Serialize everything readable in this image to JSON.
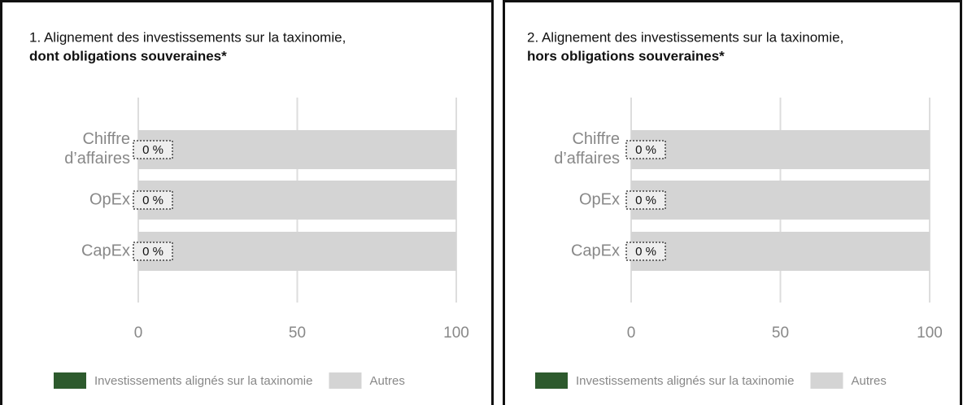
{
  "chart_data": [
    {
      "type": "barh",
      "title": "1. Alignement des investissements sur la taxinomie,",
      "title_bold": "dont obligations souveraines*",
      "categories": [
        "Chiffre d’affaires",
        "OpEx",
        "CapEx"
      ],
      "series": [
        {
          "name": "Investissements alignés sur la taxinomie",
          "color": "#2d5a2d",
          "values": [
            0,
            0,
            0
          ],
          "value_labels": [
            "0 %",
            "0 %",
            "0 %"
          ]
        },
        {
          "name": "Autres",
          "color": "#d4d4d4",
          "values": [
            100,
            100,
            100
          ]
        }
      ],
      "xlim": [
        0,
        100
      ],
      "xticks": [
        0,
        50,
        100
      ],
      "grid": true,
      "legend": "bottom"
    },
    {
      "type": "barh",
      "title": "2. Alignement des investissements sur la taxinomie,",
      "title_bold": "hors obligations souveraines*",
      "categories": [
        "Chiffre d’affaires",
        "OpEx",
        "CapEx"
      ],
      "series": [
        {
          "name": "Investissements alignés sur la taxinomie",
          "color": "#2d5a2d",
          "values": [
            0,
            0,
            0
          ],
          "value_labels": [
            "0 %",
            "0 %",
            "0 %"
          ]
        },
        {
          "name": "Autres",
          "color": "#d4d4d4",
          "values": [
            100,
            100,
            100
          ]
        }
      ],
      "xlim": [
        0,
        100
      ],
      "xticks": [
        0,
        50,
        100
      ],
      "grid": true,
      "legend": "bottom"
    }
  ]
}
